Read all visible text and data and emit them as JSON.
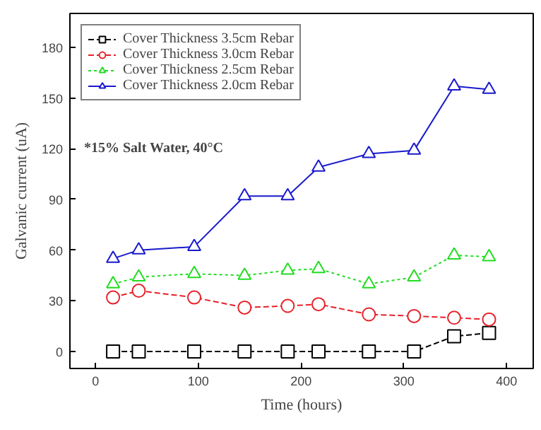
{
  "chart_data": {
    "type": "line",
    "xlabel": "Time (hours)",
    "ylabel": "Galvanic current (uA)",
    "x": [
      17,
      42,
      96,
      145,
      187,
      217,
      266,
      310,
      349,
      383
    ],
    "xlim": [
      -25,
      426
    ],
    "xticks": [
      0,
      100,
      200,
      300,
      400
    ],
    "ylim": [
      -10,
      200
    ],
    "yticks": [
      0,
      30,
      60,
      90,
      120,
      150,
      180
    ],
    "grid": false,
    "legend": "top left",
    "annotations": [
      "*15% Salt Water, 40°C"
    ],
    "series": [
      {
        "name": "Cover Thickness 3.5cm Rebar",
        "color": "#000000",
        "marker": "square",
        "line_style": "dashed",
        "values": [
          0,
          0,
          0,
          0,
          0,
          0,
          0,
          0,
          9,
          11
        ]
      },
      {
        "name": "Cover Thickness 3.0cm Rebar",
        "color": "#e8202a",
        "marker": "circle",
        "line_style": "dashed",
        "values": [
          32,
          36,
          32,
          26,
          27,
          28,
          22,
          21,
          20,
          19
        ]
      },
      {
        "name": "Cover Thickness 2.5cm Rebar",
        "color": "#22dd22",
        "marker": "triangle",
        "line_style": "dotted",
        "values": [
          40,
          44,
          46,
          45,
          48,
          49,
          40,
          44,
          57,
          56
        ]
      },
      {
        "name": "Cover Thickness 2.0cm Rebar",
        "color": "#1a1acc",
        "marker": "triangle",
        "line_style": "solid",
        "values": [
          55,
          60,
          62,
          92,
          92,
          109,
          117,
          119,
          157,
          155
        ]
      }
    ]
  }
}
